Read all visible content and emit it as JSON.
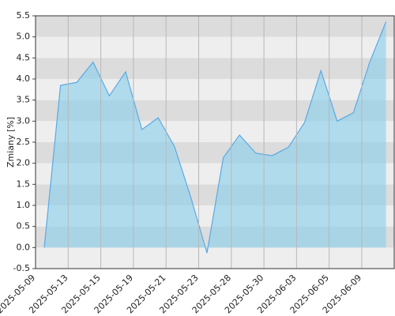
{
  "chart_data": {
    "type": "area",
    "ylabel": "Zmiany [%]",
    "categories": [
      "2025-05-09",
      null,
      "2025-05-13",
      null,
      "2025-05-15",
      null,
      "2025-05-19",
      null,
      "2025-05-21",
      null,
      "2025-05-23",
      null,
      "2025-05-28",
      null,
      "2025-05-30",
      null,
      "2025-06-03",
      null,
      "2025-06-05",
      null,
      "2025-06-09",
      null
    ],
    "values": [
      0.0,
      3.85,
      3.92,
      4.4,
      3.6,
      4.17,
      2.8,
      3.08,
      2.4,
      1.2,
      -0.13,
      2.13,
      2.67,
      2.24,
      2.18,
      2.38,
      2.97,
      4.2,
      3.0,
      3.2,
      4.4,
      5.36
    ],
    "color": "#5aa9e6",
    "fill": "rgba(135,206,235,0.6)",
    "ylim": [
      -0.5,
      5.5
    ],
    "yticks": [
      -0.5,
      {
        "value": 0,
        "label": "0.0"
      },
      0.5,
      {
        "value": 1,
        "label": "1.0"
      },
      1.5,
      {
        "value": 2,
        "label": "2.0"
      },
      2.5,
      {
        "value": 3,
        "label": "3.0"
      },
      3.5,
      {
        "value": 4,
        "label": "4.0"
      },
      4.5,
      {
        "value": 5,
        "label": "5.0"
      },
      5.5
    ],
    "grid": true
  }
}
